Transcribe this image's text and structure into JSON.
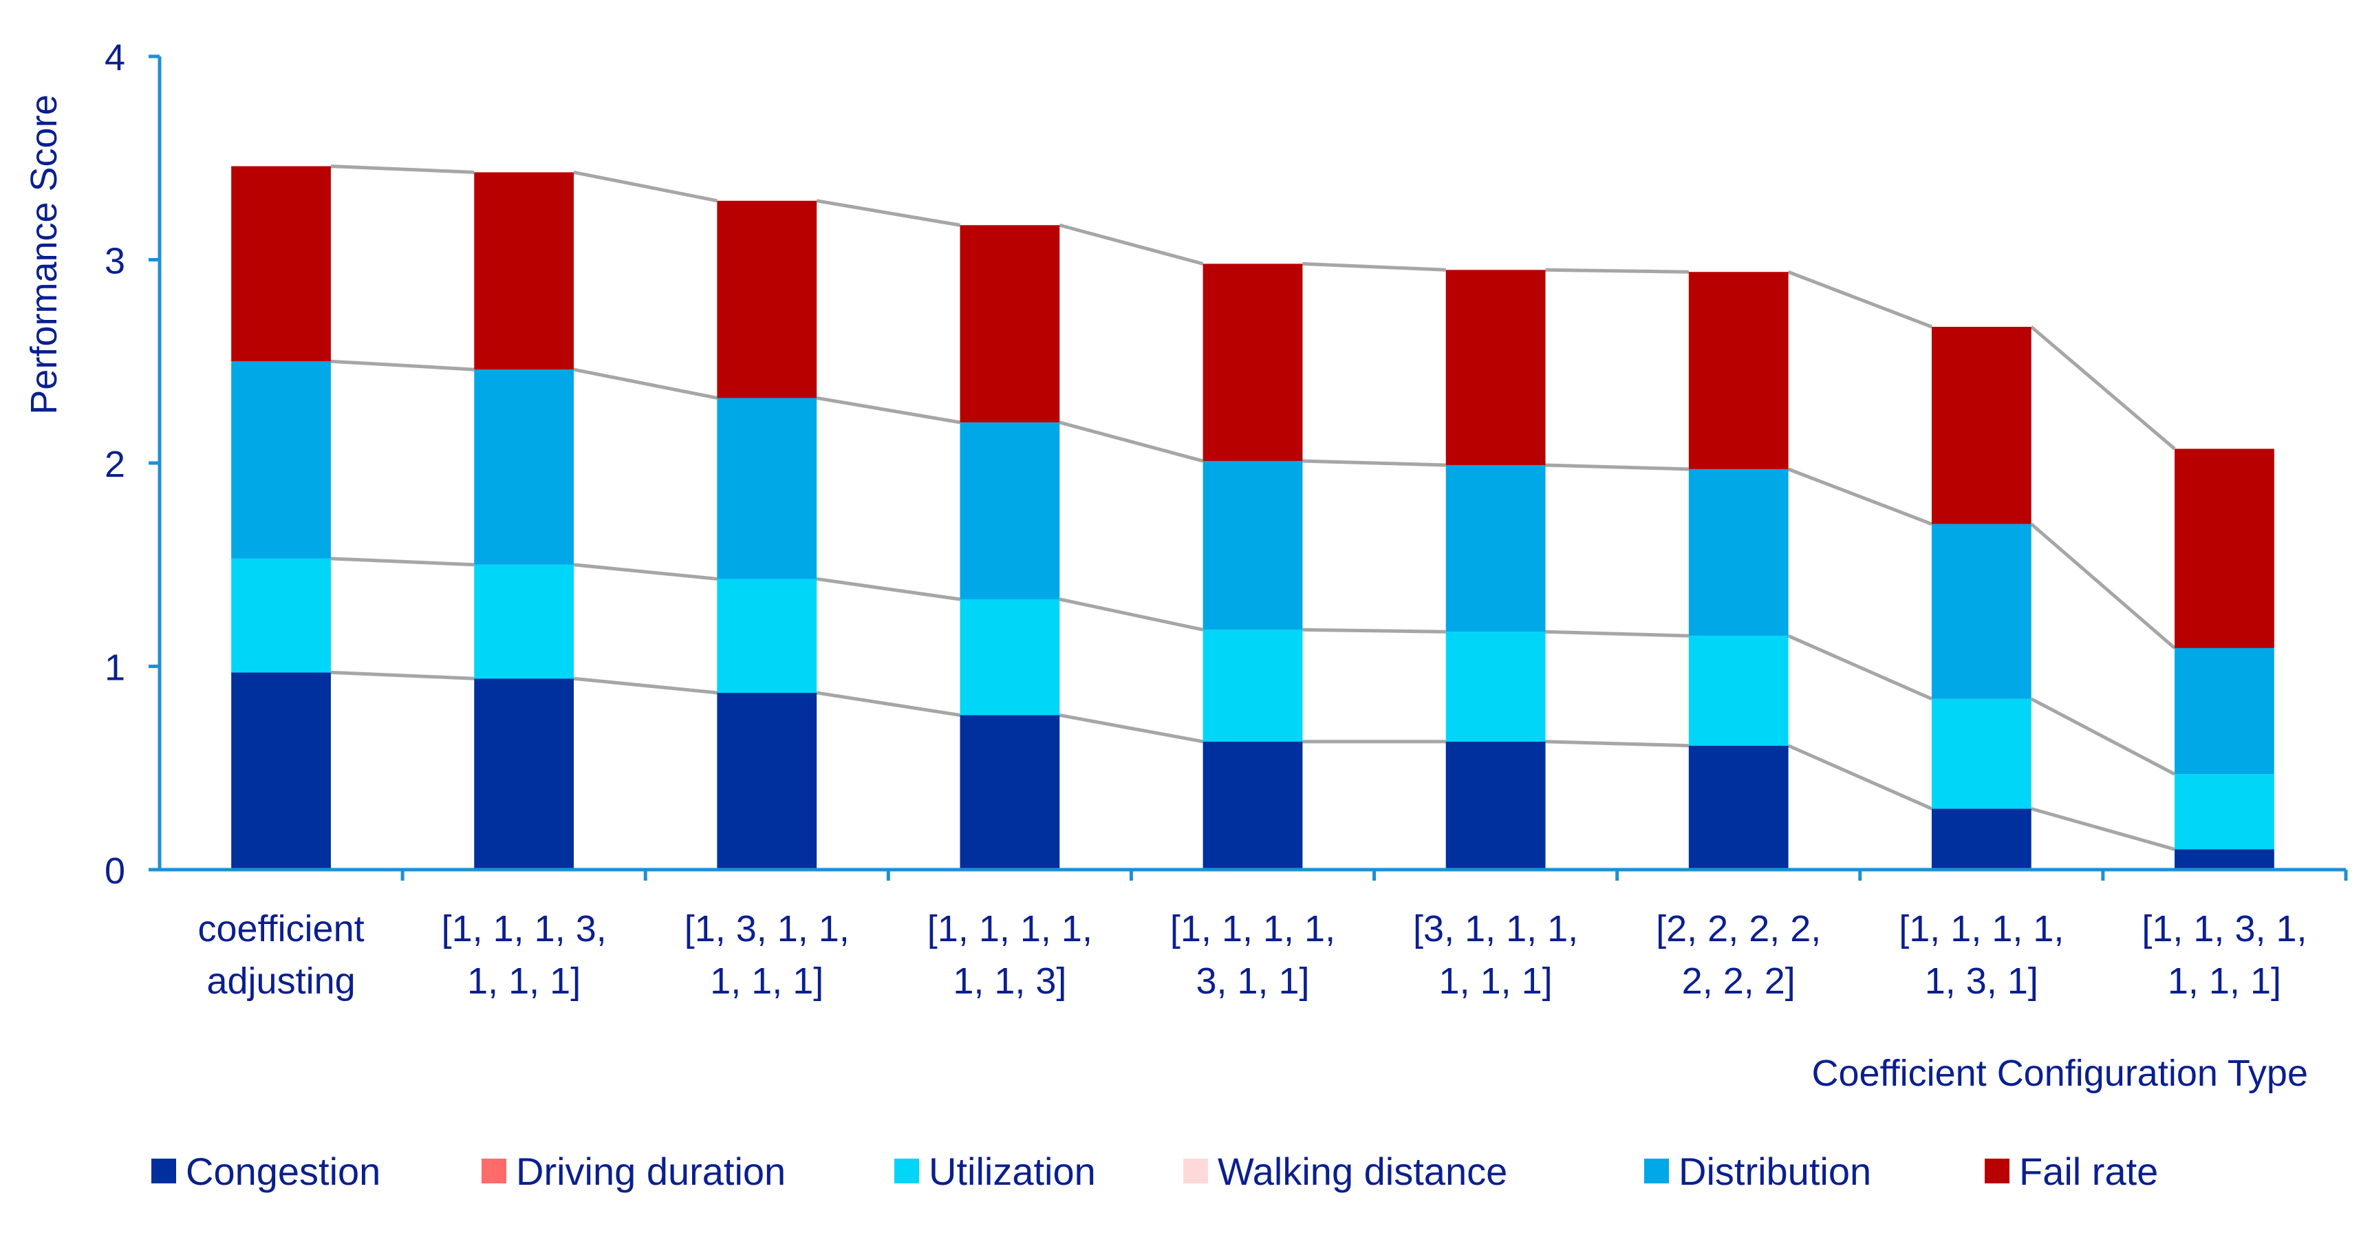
{
  "chart_data": {
    "type": "bar",
    "stacked": true,
    "title": "",
    "xlabel": "Coefficient Configuration Type",
    "ylabel": "Performance Score",
    "ylim": [
      0,
      4
    ],
    "yticks": [
      "0",
      "1",
      "2",
      "3",
      "4"
    ],
    "grid": false,
    "legend_position": "bottom",
    "categories": [
      [
        "coefficient",
        "adjusting"
      ],
      [
        "[1, 1, 1, 3,",
        "1, 1, 1]"
      ],
      [
        "[1, 3, 1, 1,",
        "1, 1, 1]"
      ],
      [
        "[1, 1, 1, 1,",
        "1, 1, 3]"
      ],
      [
        "[1, 1, 1, 1,",
        "3, 1, 1]"
      ],
      [
        "[3, 1, 1, 1,",
        "1, 1, 1]"
      ],
      [
        "[2, 2, 2, 2,",
        "2, 2, 2]"
      ],
      [
        "[1, 1, 1, 1,",
        "1, 3, 1]"
      ],
      [
        "[1, 1, 3, 1,",
        "1, 1, 1]"
      ]
    ],
    "series": [
      {
        "name": "Congestion",
        "color": "#002f9e",
        "values": [
          0.97,
          0.94,
          0.87,
          0.76,
          0.63,
          0.63,
          0.61,
          0.3,
          0.1
        ]
      },
      {
        "name": "Driving duration",
        "color": "#ff6b6b",
        "values": [
          0,
          0,
          0,
          0,
          0,
          0,
          0,
          0,
          0
        ]
      },
      {
        "name": "Utilization",
        "color": "#00d6f8",
        "values": [
          0.56,
          0.56,
          0.56,
          0.57,
          0.55,
          0.54,
          0.54,
          0.54,
          0.37
        ]
      },
      {
        "name": "Walking distance",
        "color": "#ffd9d9",
        "values": [
          0,
          0,
          0,
          0,
          0,
          0,
          0,
          0,
          0
        ]
      },
      {
        "name": "Distribution",
        "color": "#00a8e8",
        "values": [
          0.97,
          0.96,
          0.89,
          0.87,
          0.83,
          0.82,
          0.82,
          0.86,
          0.62
        ]
      },
      {
        "name": "Fail rate",
        "color": "#b80000",
        "values": [
          0.96,
          0.97,
          0.97,
          0.97,
          0.97,
          0.96,
          0.97,
          0.97,
          0.98
        ]
      }
    ],
    "connector_color": "#a6a6a6",
    "axis_color": "#1e90d4"
  }
}
